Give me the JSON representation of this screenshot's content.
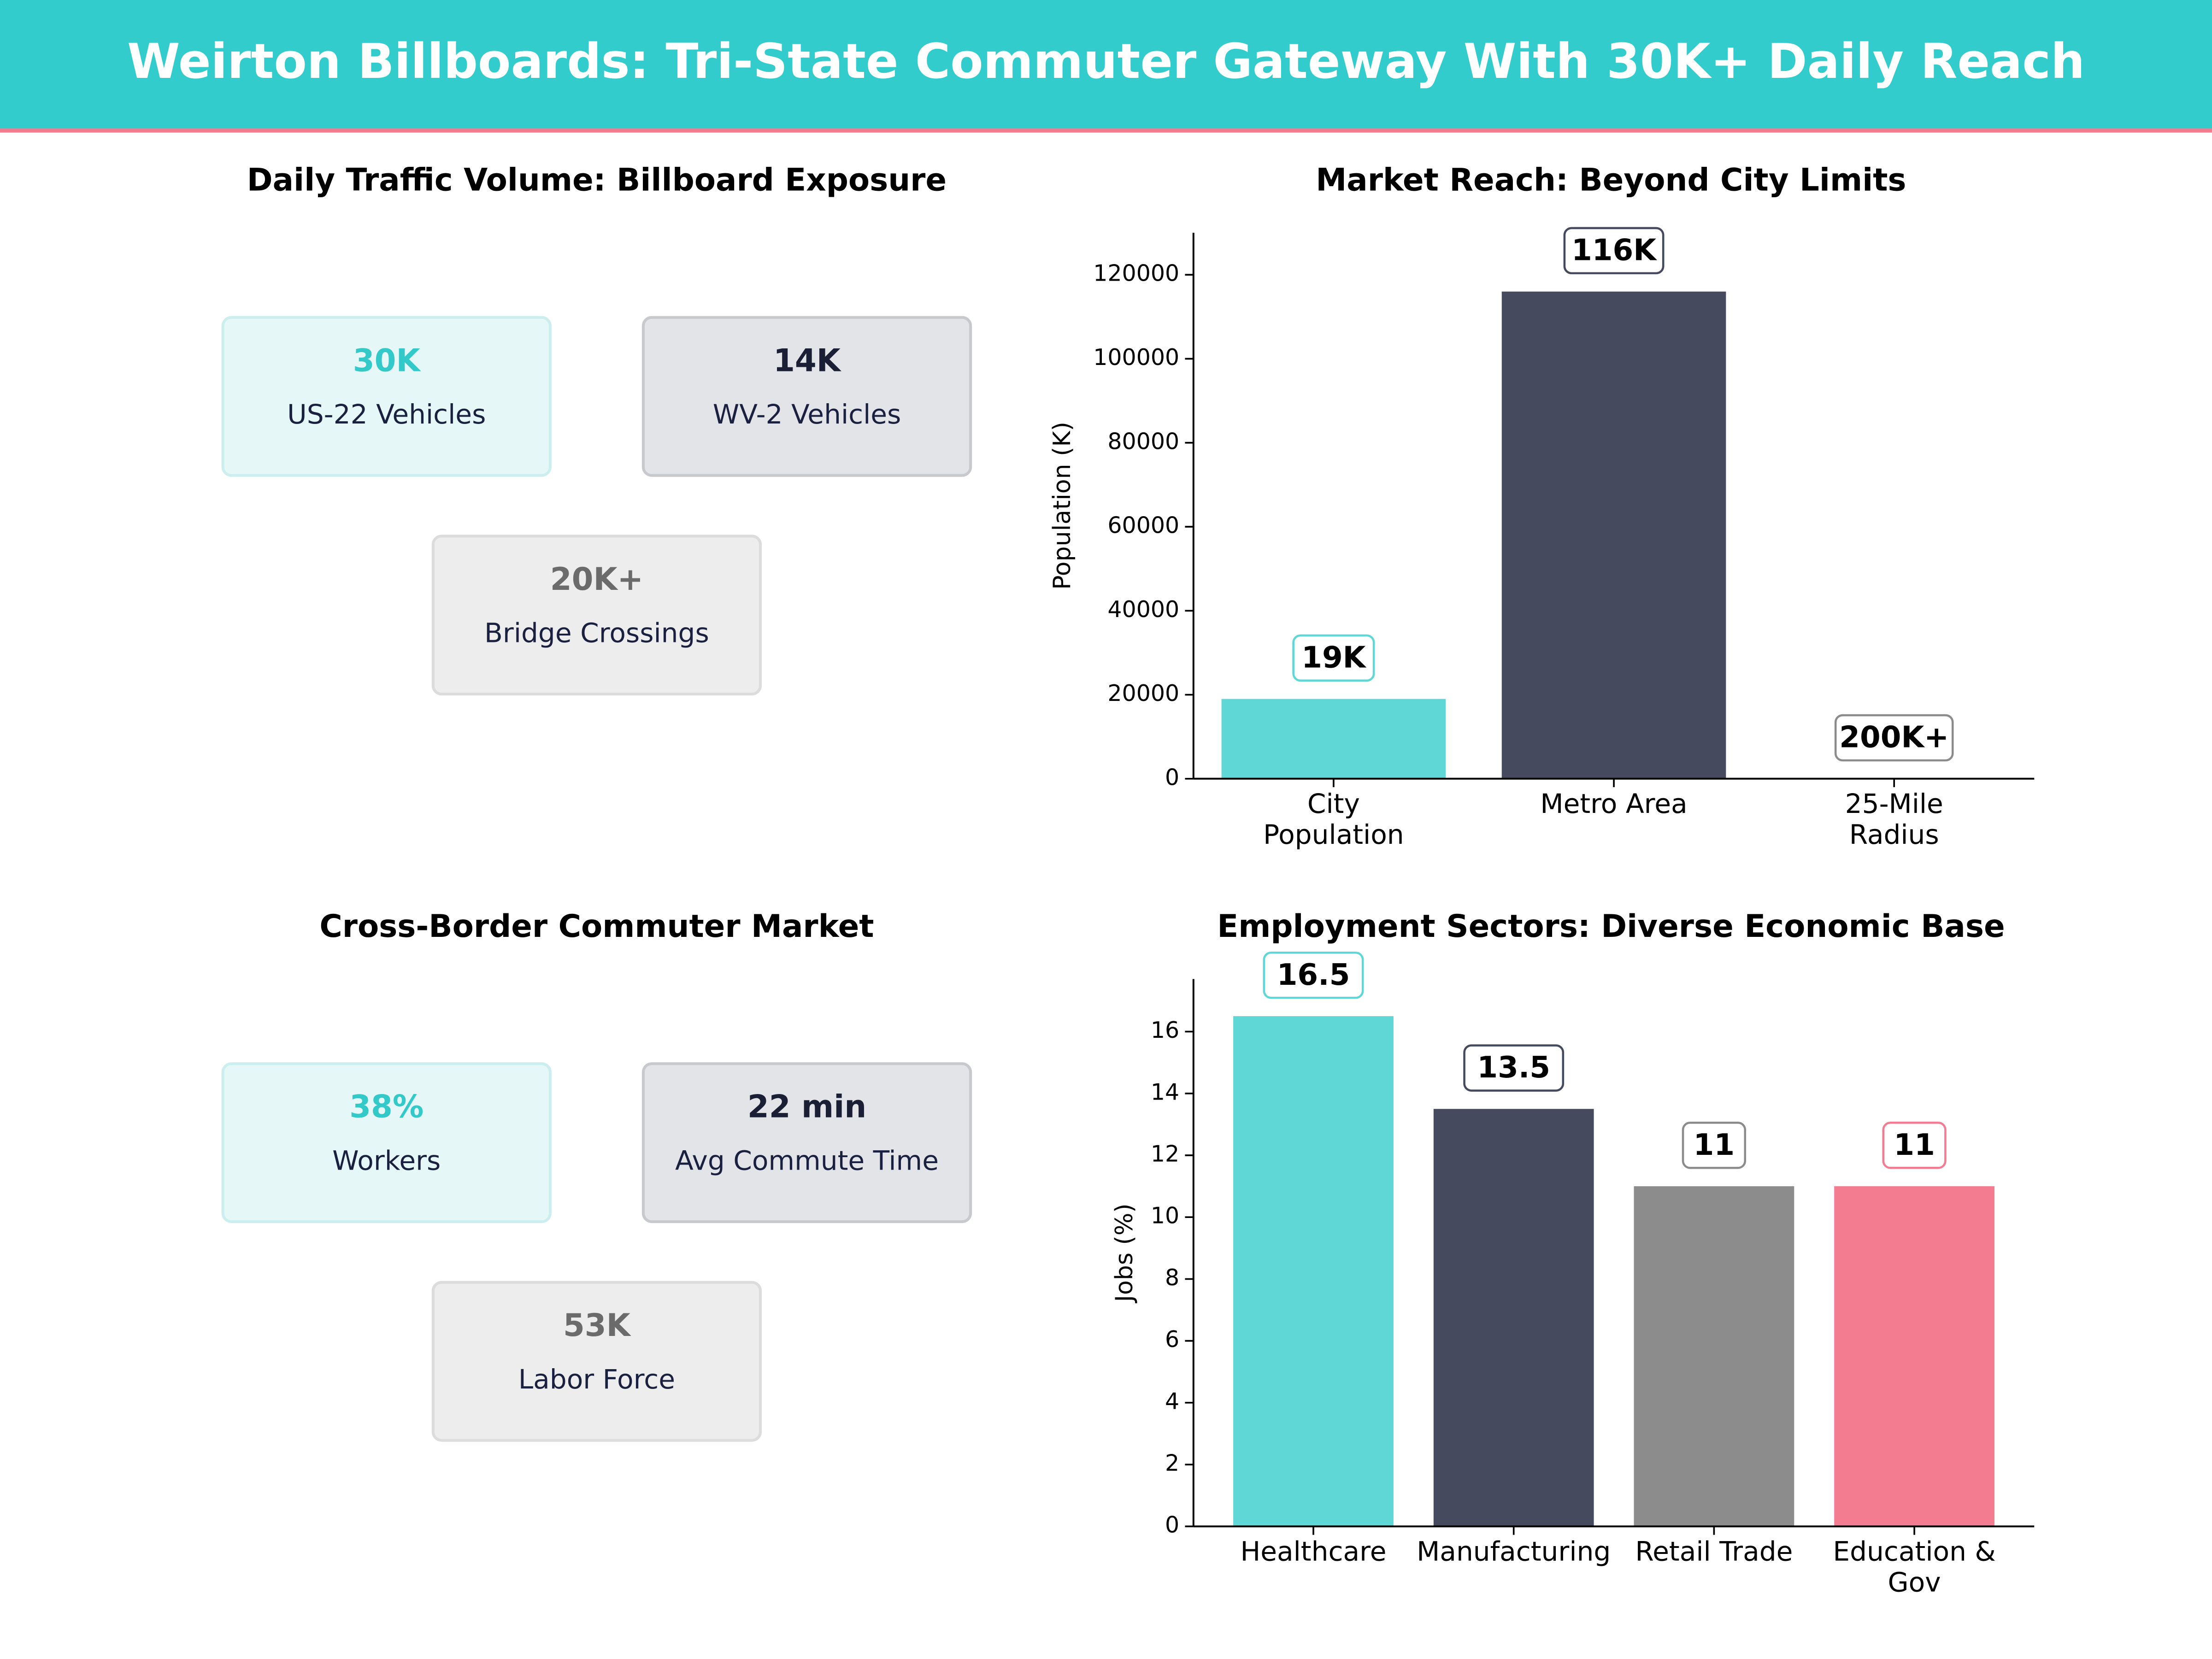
{
  "header": {
    "title": "Weirton Billboards: Tri-State Commuter Gateway With 30K+ Daily Reach"
  },
  "kpi_panels": [
    {
      "title": "Daily Traffic Volume: Billboard Exposure",
      "cards": [
        {
          "value": "30K",
          "label": "US-22  Vehicles",
          "style": "teal"
        },
        {
          "value": "14K",
          "label": "WV-2  Vehicles",
          "style": "dark"
        },
        {
          "value": "20K+",
          "label": "Bridge Crossings",
          "style": "gray"
        }
      ]
    },
    {
      "title": "Cross-Border Commuter Market",
      "cards": [
        {
          "value": "38%",
          "label": "Workers",
          "style": "teal"
        },
        {
          "value": "22 min",
          "label": "Avg Commute Time",
          "style": "dark"
        },
        {
          "value": "53K",
          "label": "Labor Force",
          "style": "gray"
        }
      ]
    }
  ],
  "chart_data": [
    {
      "type": "bar",
      "title": "Market Reach: Beyond City Limits",
      "y_label": "Population (K)",
      "categories": [
        "City\nPopulation",
        "Metro Area",
        "25-Mile\nRadius"
      ],
      "values": [
        19000,
        116000,
        null
      ],
      "value_labels": [
        "19K",
        "116K",
        "200K+"
      ],
      "colors": [
        "#5ed7d6",
        "#454a5f",
        "#8c8c8c"
      ],
      "ylim": [
        0,
        130000
      ],
      "yticks": [
        0,
        20000,
        40000,
        60000,
        80000,
        100000,
        120000
      ]
    },
    {
      "type": "bar",
      "title": "Employment Sectors: Diverse Economic Base",
      "y_label": "Jobs (%)",
      "categories": [
        "Healthcare",
        "Manufacturing",
        "Retail Trade",
        "Education &\nGov"
      ],
      "values": [
        16.5,
        13.5,
        11,
        11
      ],
      "colors": [
        "#5ed7d6",
        "#454a5f",
        "#8c8c8c",
        "#f47c91"
      ],
      "ylim": [
        0,
        17.7
      ],
      "yticks": [
        0,
        2,
        4,
        6,
        8,
        10,
        12,
        14,
        16
      ]
    }
  ]
}
